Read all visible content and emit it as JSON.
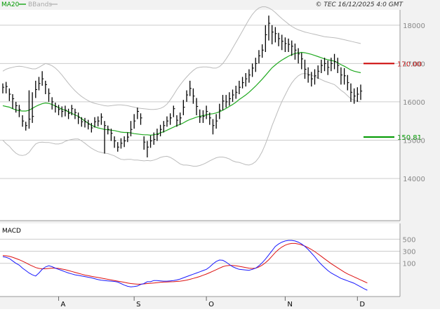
{
  "header": {
    "legend_ma20": "MA20",
    "legend_bbands": "BBands",
    "source": "© TEC 16/12/2025 4:0 GMT"
  },
  "colors": {
    "ma20": "#22aa22",
    "bbands": "#bbbbbb",
    "bars": "#000000",
    "macd_line": "#1a1aff",
    "signal_line": "#dd1111",
    "resistance": "#cc0000",
    "support": "#009900",
    "grid": "#cccccc",
    "panel_bg": "#ffffff",
    "page_bg": "#f2f2f2"
  },
  "chart_data": [
    {
      "type": "ohlc",
      "panel": "price",
      "ylim": [
        12900,
        18400
      ],
      "yticks": [
        14000,
        15000,
        16000,
        17000,
        18000
      ],
      "ytick_labels": [
        "14000",
        "15000",
        "16000",
        "17000",
        "18000"
      ],
      "months": [
        {
          "label": "A",
          "index": 17
        },
        {
          "label": "S",
          "index": 40
        },
        {
          "label": "O",
          "index": 62
        },
        {
          "label": "N",
          "index": 86
        },
        {
          "label": "D",
          "index": 108
        }
      ],
      "close": [
        16380,
        16400,
        16200,
        16080,
        15900,
        15800,
        15500,
        15380,
        15550,
        15620,
        16320,
        16480,
        16600,
        16450,
        16220,
        16000,
        15880,
        15800,
        15750,
        15780,
        15700,
        15820,
        15720,
        15600,
        15480,
        15480,
        15420,
        15320,
        15480,
        15500,
        15600,
        15380,
        15280,
        15180,
        14980,
        14820,
        14920,
        14980,
        15080,
        15280,
        15500,
        15750,
        15580,
        14950,
        14820,
        14980,
        15020,
        15150,
        15280,
        15380,
        15500,
        15580,
        15820,
        15520,
        15580,
        15860,
        16180,
        16350,
        16150,
        15880,
        15600,
        15620,
        15750,
        15580,
        15380,
        15500,
        15780,
        16020,
        16000,
        16080,
        16180,
        16250,
        16380,
        16500,
        16600,
        16700,
        16880,
        17000,
        17200,
        17350,
        17750,
        18050,
        17820,
        17780,
        17650,
        17580,
        17520,
        17500,
        17450,
        17350,
        17250,
        17120,
        16850,
        16700,
        16600,
        16680,
        16800,
        16950,
        17000,
        16900,
        17000,
        17050,
        16950,
        16700,
        16680,
        16500,
        16250,
        16150,
        16200,
        16280
      ],
      "high": [
        16480,
        16520,
        16350,
        16200,
        16000,
        15920,
        15650,
        15480,
        16300,
        16250,
        16550,
        16650,
        16800,
        16550,
        16350,
        16120,
        15980,
        15920,
        15880,
        15900,
        15820,
        15920,
        15820,
        15720,
        15600,
        15580,
        15530,
        15450,
        15600,
        15620,
        15700,
        15500,
        15380,
        15300,
        15100,
        14950,
        15050,
        15100,
        15200,
        15500,
        15680,
        15850,
        15700,
        15100,
        14980,
        15120,
        15200,
        15300,
        15400,
        15500,
        15620,
        15700,
        15900,
        15650,
        15720,
        16050,
        16300,
        16550,
        16350,
        16100,
        15800,
        15780,
        15900,
        15720,
        15550,
        15680,
        15950,
        16180,
        16180,
        16250,
        16320,
        16420,
        16550,
        16650,
        16750,
        16850,
        17000,
        17150,
        17350,
        17500,
        18000,
        18250,
        18000,
        17950,
        17800,
        17750,
        17680,
        17650,
        17600,
        17520,
        17400,
        17280,
        17100,
        16900,
        16780,
        16850,
        16950,
        17100,
        17150,
        17080,
        17150,
        17250,
        17150,
        16900,
        16880,
        16700,
        16480,
        16350,
        16380,
        16450
      ],
      "low": [
        16220,
        16220,
        16020,
        15820,
        15720,
        15600,
        15350,
        15250,
        15300,
        15450,
        16100,
        16300,
        16420,
        16200,
        16000,
        15800,
        15720,
        15650,
        15600,
        15620,
        15550,
        15650,
        15550,
        15420,
        15350,
        15330,
        15280,
        15200,
        15330,
        15360,
        15400,
        14650,
        15150,
        14980,
        14800,
        14700,
        14780,
        14820,
        14950,
        15100,
        15300,
        15550,
        15400,
        14750,
        14550,
        14800,
        14880,
        14980,
        15100,
        15200,
        15350,
        15400,
        15600,
        15350,
        15400,
        15650,
        16000,
        16150,
        15950,
        15650,
        15450,
        15450,
        15550,
        15400,
        15150,
        15300,
        15550,
        15780,
        15850,
        15900,
        16000,
        16080,
        16200,
        16350,
        16400,
        16500,
        16650,
        16780,
        17000,
        17150,
        17300,
        17600,
        17500,
        17550,
        17450,
        17350,
        17300,
        17300,
        17200,
        17100,
        17000,
        16850,
        16600,
        16500,
        16400,
        16450,
        16600,
        16750,
        16800,
        16700,
        16800,
        16850,
        16750,
        16450,
        16450,
        16300,
        16000,
        15950,
        16000,
        16050
      ],
      "ma20": [
        15900,
        15880,
        15860,
        15820,
        15790,
        15770,
        15760,
        15760,
        15780,
        15830,
        15880,
        15920,
        15950,
        15970,
        15960,
        15930,
        15890,
        15850,
        15810,
        15780,
        15740,
        15700,
        15660,
        15620,
        15560,
        15500,
        15440,
        15390,
        15350,
        15320,
        15300,
        15280,
        15270,
        15260,
        15250,
        15230,
        15210,
        15200,
        15200,
        15190,
        15170,
        15160,
        15150,
        15140,
        15140,
        15130,
        15140,
        15160,
        15190,
        15220,
        15260,
        15300,
        15340,
        15380,
        15410,
        15450,
        15500,
        15540,
        15570,
        15600,
        15620,
        15640,
        15660,
        15680,
        15690,
        15710,
        15740,
        15780,
        15830,
        15880,
        15930,
        15990,
        16060,
        16120,
        16180,
        16250,
        16330,
        16410,
        16500,
        16590,
        16690,
        16790,
        16890,
        16960,
        17030,
        17090,
        17140,
        17190,
        17230,
        17260,
        17280,
        17290,
        17280,
        17260,
        17240,
        17210,
        17180,
        17150,
        17120,
        17100,
        17080,
        17060,
        17020,
        16970,
        16930,
        16880,
        16830,
        16800,
        16780,
        16760
      ],
      "bb_upper": [
        16800,
        16850,
        16880,
        16900,
        16920,
        16930,
        16920,
        16900,
        16880,
        16860,
        16860,
        16900,
        16950,
        17000,
        16980,
        16940,
        16880,
        16800,
        16700,
        16590,
        16480,
        16380,
        16290,
        16210,
        16140,
        16080,
        16030,
        15990,
        15960,
        15940,
        15920,
        15900,
        15890,
        15900,
        15910,
        15920,
        15920,
        15910,
        15900,
        15880,
        15860,
        15840,
        15830,
        15820,
        15810,
        15800,
        15800,
        15810,
        15830,
        15870,
        15940,
        16050,
        16180,
        16320,
        16440,
        16550,
        16650,
        16740,
        16820,
        16880,
        16900,
        16910,
        16910,
        16900,
        16880,
        16880,
        16920,
        17000,
        17120,
        17250,
        17400,
        17550,
        17700,
        17850,
        18000,
        18150,
        18280,
        18380,
        18450,
        18480,
        18480,
        18450,
        18400,
        18330,
        18250,
        18170,
        18100,
        18030,
        17970,
        17920,
        17880,
        17850,
        17820,
        17800,
        17780,
        17760,
        17740,
        17720,
        17700,
        17690,
        17680,
        17670,
        17660,
        17640,
        17620,
        17600,
        17580,
        17560,
        17540,
        17520
      ],
      "bb_lower": [
        15000,
        14910,
        14840,
        14740,
        14660,
        14610,
        14600,
        14620,
        14680,
        14800,
        14900,
        14940,
        14950,
        14940,
        14940,
        14920,
        14900,
        14900,
        14920,
        14970,
        15000,
        15020,
        15030,
        15030,
        14980,
        14920,
        14850,
        14790,
        14740,
        14700,
        14680,
        14660,
        14650,
        14620,
        14590,
        14540,
        14500,
        14490,
        14500,
        14500,
        14480,
        14480,
        14470,
        14460,
        14470,
        14460,
        14480,
        14510,
        14550,
        14570,
        14580,
        14550,
        14500,
        14440,
        14380,
        14350,
        14350,
        14340,
        14320,
        14320,
        14340,
        14370,
        14410,
        14460,
        14500,
        14540,
        14560,
        14560,
        14540,
        14510,
        14460,
        14430,
        14420,
        14390,
        14360,
        14350,
        14380,
        14440,
        14550,
        14700,
        14900,
        15130,
        15380,
        15590,
        15810,
        16010,
        16180,
        16350,
        16490,
        16600,
        16680,
        16730,
        16740,
        16720,
        16700,
        16660,
        16620,
        16580,
        16540,
        16510,
        16480,
        16450,
        16380,
        16300,
        16240,
        16160,
        16080,
        16040,
        16020,
        16000
      ]
    },
    {
      "type": "line",
      "panel": "macd",
      "title": "MACD",
      "ylim": [
        -450,
        760
      ],
      "yticks": [
        100,
        300,
        500
      ],
      "ytick_labels": [
        "100",
        "300",
        "500"
      ],
      "series": [
        {
          "key": "macd",
          "values": [
            210,
            200,
            180,
            140,
            100,
            70,
            20,
            -20,
            -60,
            -90,
            -110,
            -60,
            0,
            40,
            60,
            45,
            20,
            0,
            -20,
            -40,
            -60,
            -75,
            -90,
            -100,
            -110,
            -120,
            -130,
            -140,
            -155,
            -170,
            -180,
            -185,
            -190,
            -195,
            -200,
            -210,
            -235,
            -260,
            -280,
            -290,
            -285,
            -275,
            -250,
            -235,
            -205,
            -205,
            -185,
            -185,
            -190,
            -195,
            -195,
            -190,
            -185,
            -175,
            -160,
            -140,
            -120,
            -100,
            -80,
            -60,
            -40,
            -20,
            0,
            40,
            90,
            130,
            155,
            150,
            120,
            80,
            45,
            20,
            0,
            -5,
            -10,
            -15,
            0,
            20,
            60,
            110,
            170,
            240,
            310,
            380,
            420,
            450,
            470,
            480,
            480,
            470,
            450,
            420,
            380,
            330,
            270,
            210,
            140,
            80,
            30,
            -20,
            -60,
            -90,
            -120,
            -150,
            -170,
            -190,
            -210,
            -230,
            -260,
            -290,
            -320,
            -345
          ]
        },
        {
          "key": "signal",
          "values": [
            230,
            225,
            215,
            200,
            180,
            160,
            135,
            110,
            80,
            55,
            30,
            15,
            10,
            10,
            15,
            20,
            20,
            15,
            5,
            -5,
            -20,
            -35,
            -50,
            -65,
            -80,
            -95,
            -105,
            -115,
            -125,
            -135,
            -145,
            -155,
            -165,
            -175,
            -185,
            -195,
            -205,
            -215,
            -225,
            -235,
            -240,
            -245,
            -245,
            -240,
            -235,
            -230,
            -225,
            -220,
            -215,
            -210,
            -208,
            -206,
            -204,
            -200,
            -195,
            -188,
            -178,
            -165,
            -150,
            -135,
            -118,
            -98,
            -78,
            -55,
            -30,
            -5,
            20,
            45,
            60,
            65,
            65,
            60,
            50,
            40,
            30,
            20,
            15,
            20,
            40,
            70,
            110,
            160,
            220,
            280,
            330,
            370,
            400,
            420,
            430,
            430,
            420,
            405,
            385,
            360,
            330,
            295,
            255,
            215,
            175,
            135,
            95,
            60,
            25,
            -10,
            -45,
            -75,
            -100,
            -125,
            -150,
            -175,
            -200,
            -225
          ]
        }
      ]
    }
  ],
  "levels": [
    {
      "label": "170.00",
      "value": 17000
    },
    {
      "label": "150.81",
      "value": 15081
    }
  ],
  "xaxis": {
    "months": [
      "A",
      "S",
      "O",
      "N",
      "D"
    ]
  }
}
